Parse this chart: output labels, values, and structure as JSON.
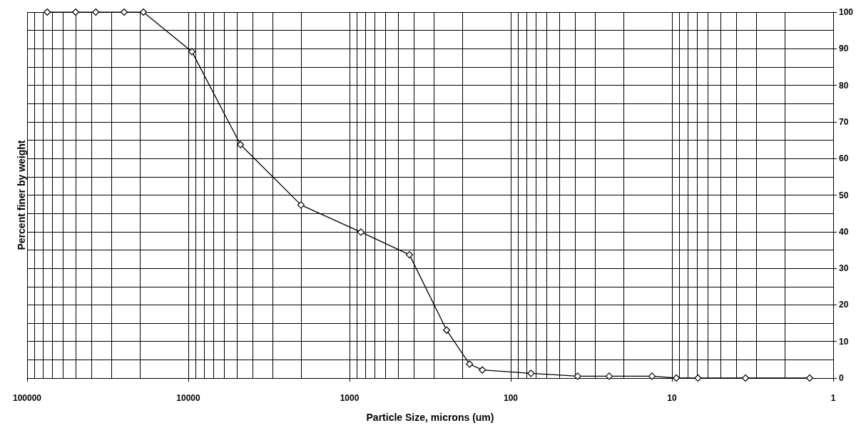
{
  "chart_data": {
    "type": "line",
    "xlabel": "Particle Size, microns (um)",
    "ylabel": "Percent finer by weight",
    "x": [
      75000,
      50000,
      37500,
      25000,
      19000,
      9500,
      4750,
      2000,
      850,
      425,
      250,
      180,
      150,
      75,
      38.5,
      24.5,
      13.3,
      9.4,
      6.9,
      3.5,
      1.4
    ],
    "series": [
      {
        "color": "#000000",
        "values": [
          100,
          100,
          100,
          100,
          100,
          89.2,
          63.8,
          47.3,
          39.9,
          33.7,
          13.1,
          3.8,
          2.2,
          1.3,
          0.5,
          0.5,
          0.5,
          0,
          0,
          0,
          0
        ]
      }
    ],
    "log": "x",
    "xlim": [
      100000,
      1
    ],
    "xticks": [
      100000,
      {
        "value": 90000,
        "label": null
      },
      {
        "value": 80000,
        "label": null
      },
      {
        "value": 70000,
        "label": null
      },
      {
        "value": 60000,
        "label": null
      },
      {
        "value": 50000,
        "label": null
      },
      {
        "value": 40000,
        "label": null
      },
      {
        "value": 30000,
        "label": null
      },
      {
        "value": 20000,
        "label": null
      },
      10000,
      {
        "value": 9000,
        "label": null
      },
      {
        "value": 8000,
        "label": null
      },
      {
        "value": 7000,
        "label": null
      },
      {
        "value": 6000,
        "label": null
      },
      {
        "value": 5000,
        "label": null
      },
      {
        "value": 4000,
        "label": null
      },
      {
        "value": 3000,
        "label": null
      },
      {
        "value": 2000,
        "label": null
      },
      1000,
      {
        "value": 900,
        "label": null
      },
      {
        "value": 800,
        "label": null
      },
      {
        "value": 700,
        "label": null
      },
      {
        "value": 600,
        "label": null
      },
      {
        "value": 500,
        "label": null
      },
      {
        "value": 400,
        "label": null
      },
      {
        "value": 300,
        "label": null
      },
      {
        "value": 200,
        "label": null
      },
      100,
      {
        "value": 90,
        "label": null
      },
      {
        "value": 80,
        "label": null
      },
      {
        "value": 70,
        "label": null
      },
      {
        "value": 60,
        "label": null
      },
      {
        "value": 50,
        "label": null
      },
      {
        "value": 40,
        "label": null
      },
      {
        "value": 30,
        "label": null
      },
      {
        "value": 20,
        "label": null
      },
      10,
      {
        "value": 9,
        "label": null
      },
      {
        "value": 8,
        "label": null
      },
      {
        "value": 7,
        "label": null
      },
      {
        "value": 6,
        "label": null
      },
      {
        "value": 5,
        "label": null
      },
      {
        "value": 4,
        "label": null
      },
      {
        "value": 3,
        "label": null
      },
      {
        "value": 2,
        "label": null
      },
      1
    ],
    "ylim": [
      0,
      100
    ],
    "yticks": [
      0,
      {
        "value": 5,
        "label": null
      },
      10,
      {
        "value": 15,
        "label": null
      },
      20,
      {
        "value": 25,
        "label": null
      },
      30,
      {
        "value": 35,
        "label": null
      },
      40,
      {
        "value": 45,
        "label": null
      },
      50,
      {
        "value": 55,
        "label": null
      },
      60,
      {
        "value": 65,
        "label": null
      },
      70,
      {
        "value": 75,
        "label": null
      },
      80,
      {
        "value": 85,
        "label": null
      },
      90,
      {
        "value": 95,
        "label": null
      },
      100
    ],
    "grid": true,
    "marker": "diamond",
    "line_style": "solid"
  }
}
